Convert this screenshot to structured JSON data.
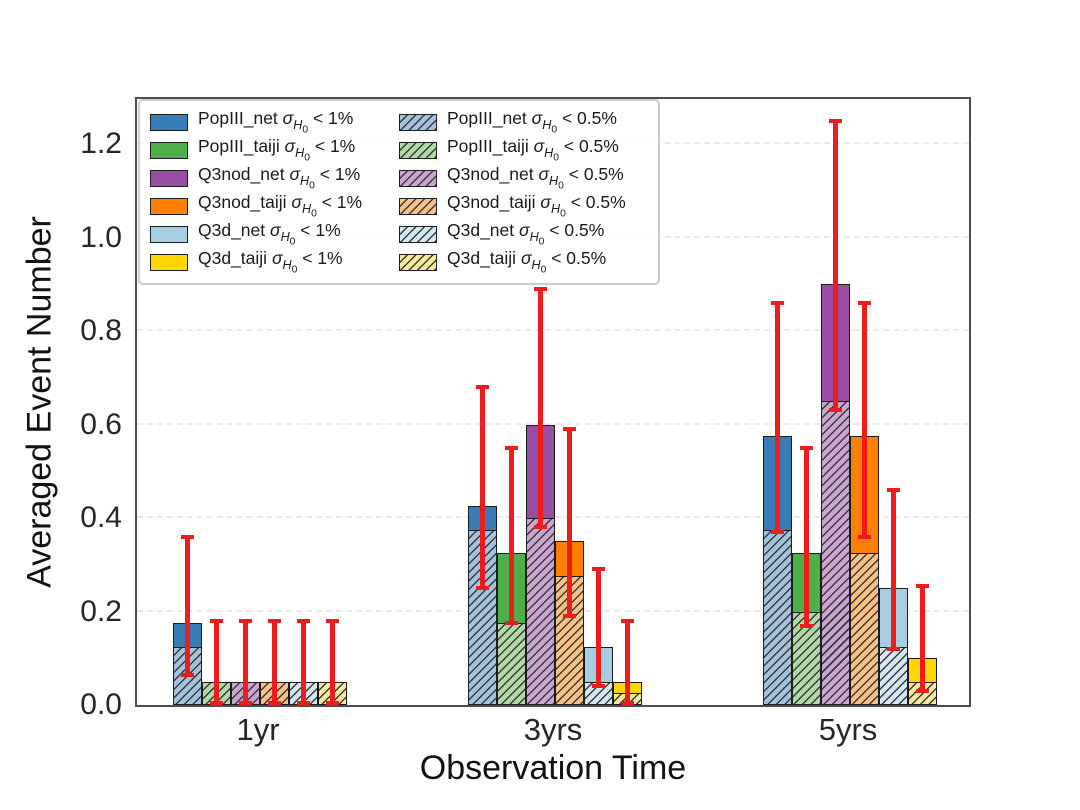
{
  "figure": {
    "background": "#ffffff",
    "spine_color": "#4d4d4d"
  },
  "chart_data": {
    "type": "bar",
    "title": "",
    "xlabel": "Observation Time",
    "ylabel": "Averaged Event Number",
    "categories": [
      "1yr",
      "3yrs",
      "5yrs"
    ],
    "ytick_labels": [
      "0.0",
      "0.2",
      "0.4",
      "0.6",
      "0.8",
      "1.0",
      "1.2"
    ],
    "yticks": [
      0.0,
      0.2,
      0.4,
      0.6,
      0.8,
      1.0,
      1.2
    ],
    "ylim": [
      0,
      1.305
    ],
    "grid": {
      "axis": "y",
      "style": "dashed",
      "color": "#eceaed"
    },
    "hatch_pattern": "//",
    "error_bar_color": "#ee1c1c",
    "legend": {
      "position": "upper left",
      "columns": 2,
      "sigma": "σ",
      "sub": "H",
      "subsub": "0",
      "lt": "<",
      "thresholds": [
        "1%",
        "0.5%"
      ]
    },
    "series": [
      {
        "name": "PopIII_net",
        "color": "#377eb8",
        "hatch_fill": "#a3c2de",
        "solid_values": [
          0.175,
          0.425,
          0.575
        ],
        "hatched_values": [
          0.125,
          0.375,
          0.375
        ],
        "err_low": [
          0.065,
          0.25,
          0.37
        ],
        "err_high": [
          0.36,
          0.68,
          0.86
        ]
      },
      {
        "name": "PopIII_taiji",
        "color": "#4daf4a",
        "hatch_fill": "#b0d9a6",
        "solid_values": [
          0.05,
          0.325,
          0.325
        ],
        "hatched_values": [
          0.05,
          0.175,
          0.2
        ],
        "err_low": [
          0.0,
          0.175,
          0.17
        ],
        "err_high": [
          0.18,
          0.55,
          0.55
        ]
      },
      {
        "name": "Q3nod_net",
        "color": "#984ea3",
        "hatch_fill": "#caa5d0",
        "solid_values": [
          0.05,
          0.6,
          0.9
        ],
        "hatched_values": [
          0.05,
          0.4,
          0.65
        ],
        "err_low": [
          0.0,
          0.38,
          0.63
        ],
        "err_high": [
          0.18,
          0.89,
          1.25
        ]
      },
      {
        "name": "Q3nod_taiji",
        "color": "#ff7f00",
        "hatch_fill": "#fdc184",
        "solid_values": [
          0.05,
          0.35,
          0.575
        ],
        "hatched_values": [
          0.05,
          0.275,
          0.325
        ],
        "err_low": [
          0.0,
          0.19,
          0.36
        ],
        "err_high": [
          0.18,
          0.59,
          0.86
        ]
      },
      {
        "name": "Q3d_net",
        "color": "#a6cee3",
        "hatch_fill": "#d4e8f3",
        "solid_values": [
          0.05,
          0.125,
          0.25
        ],
        "hatched_values": [
          0.05,
          0.05,
          0.125
        ],
        "err_low": [
          0.0,
          0.04,
          0.12
        ],
        "err_high": [
          0.18,
          0.29,
          0.46
        ]
      },
      {
        "name": "Q3d_taiji",
        "color": "#ffd700",
        "hatch_fill": "#f7eb9b",
        "solid_values": [
          0.05,
          0.05,
          0.1
        ],
        "hatched_values": [
          0.05,
          0.025,
          0.05
        ],
        "err_low": [
          0.0,
          0.0,
          0.03
        ],
        "err_high": [
          0.18,
          0.18,
          0.255
        ]
      }
    ]
  }
}
